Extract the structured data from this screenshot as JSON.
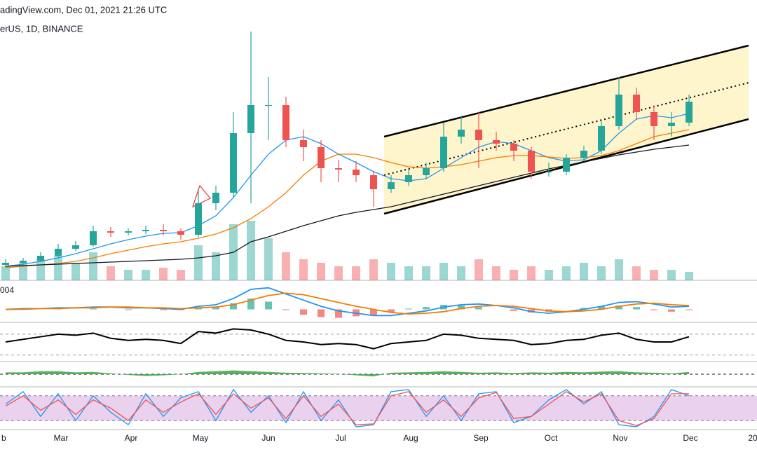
{
  "chart_data": {
    "type": "candlestick",
    "title": "adingView.com, Dec 01, 2021 21:26 UTC",
    "subtitle": "erUS, 1D, BINANCE",
    "x_labels": [
      "b",
      "Mar",
      "Apr",
      "May",
      "Jun",
      "Jul",
      "Aug",
      "Sep",
      "Oct",
      "Nov",
      "Dec",
      "20"
    ],
    "ylim": [
      0,
      375
    ],
    "up_color": "#26a69a",
    "down_color": "#ef5350",
    "candles": [
      [
        22,
        30,
        18,
        25
      ],
      [
        25,
        32,
        22,
        28
      ],
      [
        28,
        40,
        26,
        35
      ],
      [
        35,
        52,
        32,
        45
      ],
      [
        45,
        56,
        42,
        50
      ],
      [
        50,
        78,
        48,
        70
      ],
      [
        70,
        76,
        62,
        68
      ],
      [
        68,
        74,
        64,
        70
      ],
      [
        70,
        78,
        66,
        72
      ],
      [
        72,
        80,
        64,
        70
      ],
      [
        70,
        74,
        58,
        65
      ],
      [
        65,
        130,
        62,
        110
      ],
      [
        110,
        135,
        100,
        125
      ],
      [
        125,
        240,
        118,
        210
      ],
      [
        210,
        355,
        110,
        250
      ],
      [
        250,
        290,
        200,
        250
      ],
      [
        250,
        262,
        190,
        200
      ],
      [
        200,
        215,
        170,
        190
      ],
      [
        190,
        200,
        140,
        160
      ],
      [
        160,
        172,
        140,
        158
      ],
      [
        158,
        170,
        140,
        150
      ],
      [
        150,
        156,
        105,
        130
      ],
      [
        130,
        150,
        125,
        140
      ],
      [
        140,
        158,
        135,
        150
      ],
      [
        150,
        168,
        144,
        160
      ],
      [
        160,
        225,
        155,
        205
      ],
      [
        205,
        235,
        195,
        215
      ],
      [
        215,
        240,
        160,
        200
      ],
      [
        200,
        212,
        185,
        195
      ],
      [
        195,
        200,
        170,
        185
      ],
      [
        185,
        190,
        145,
        155
      ],
      [
        155,
        168,
        148,
        155
      ],
      [
        155,
        180,
        150,
        175
      ],
      [
        175,
        192,
        170,
        185
      ],
      [
        185,
        228,
        180,
        220
      ],
      [
        220,
        290,
        215,
        265
      ],
      [
        265,
        275,
        230,
        240
      ],
      [
        240,
        250,
        200,
        220
      ],
      [
        220,
        240,
        205,
        225
      ],
      [
        225,
        265,
        220,
        255
      ]
    ],
    "moving_averages": [
      {
        "color": "#2196f3",
        "values": [
          20,
          23,
          27,
          32,
          38,
          45,
          52,
          58,
          63,
          67,
          68,
          78,
          92,
          118,
          150,
          180,
          200,
          205,
          195,
          180,
          168,
          155,
          145,
          142,
          145,
          160,
          175,
          190,
          198,
          195,
          185,
          175,
          170,
          172,
          185,
          210,
          230,
          235,
          232,
          238
        ]
      },
      {
        "color": "#f57c00",
        "values": [
          18,
          20,
          22,
          24,
          27,
          32,
          38,
          43,
          48,
          52,
          55,
          60,
          66,
          75,
          88,
          105,
          125,
          150,
          170,
          180,
          180,
          175,
          168,
          162,
          160,
          162,
          165,
          170,
          175,
          178,
          178,
          176,
          174,
          175,
          178,
          185,
          195,
          205,
          210,
          215
        ]
      },
      {
        "color": "#131722",
        "values": [
          20,
          21,
          22,
          23,
          24,
          25,
          26,
          27,
          28,
          29,
          30,
          32,
          35,
          40,
          55,
          62,
          70,
          78,
          85,
          92,
          97,
          101,
          105,
          111,
          117,
          123,
          129,
          135,
          141,
          147,
          153,
          159,
          164,
          169,
          174,
          179,
          183,
          187,
          190,
          193
        ]
      }
    ],
    "volume": {
      "ylim": [
        0,
        100
      ],
      "values": [
        20,
        25,
        30,
        35,
        25,
        40,
        20,
        15,
        15,
        18,
        15,
        50,
        40,
        80,
        85,
        60,
        40,
        30,
        25,
        20,
        20,
        30,
        25,
        20,
        20,
        25,
        20,
        30,
        20,
        15,
        20,
        15,
        20,
        25,
        20,
        30,
        20,
        15,
        15,
        12
      ]
    },
    "macd": {
      "label": "004",
      "label_color": "#f57c00",
      "ylim": [
        -15,
        35
      ],
      "macd_color": "#2196f3",
      "signal_color": "#f57c00",
      "macd": [
        0,
        1,
        1,
        2,
        2,
        3,
        3,
        2,
        2,
        1,
        0,
        4,
        6,
        14,
        26,
        28,
        20,
        12,
        4,
        -2,
        -5,
        -8,
        -8,
        -5,
        -2,
        3,
        6,
        7,
        5,
        2,
        -3,
        -5,
        -3,
        0,
        4,
        9,
        10,
        7,
        3,
        4
      ],
      "signal": [
        0,
        0,
        1,
        1,
        2,
        2,
        3,
        3,
        2,
        2,
        1,
        2,
        3,
        6,
        12,
        18,
        21,
        19,
        14,
        9,
        4,
        0,
        -4,
        -6,
        -5,
        -3,
        1,
        4,
        5,
        4,
        1,
        -2,
        -3,
        -2,
        0,
        4,
        7,
        8,
        6,
        5
      ],
      "histogram": [
        0,
        1,
        0,
        1,
        0,
        1,
        0,
        -1,
        0,
        -1,
        -1,
        2,
        3,
        8,
        14,
        10,
        -1,
        -7,
        -10,
        -11,
        -9,
        -8,
        -4,
        1,
        3,
        6,
        5,
        3,
        0,
        -2,
        -4,
        -3,
        0,
        2,
        4,
        5,
        3,
        -1,
        -3,
        -1
      ]
    },
    "rsi": {
      "ylim": [
        20,
        90
      ],
      "levels": [
        70,
        30
      ],
      "color": "#000000",
      "values": [
        55,
        60,
        65,
        70,
        68,
        72,
        62,
        58,
        60,
        58,
        52,
        75,
        72,
        80,
        78,
        70,
        58,
        55,
        50,
        52,
        50,
        42,
        52,
        55,
        58,
        70,
        68,
        62,
        60,
        58,
        50,
        52,
        58,
        60,
        68,
        72,
        60,
        55,
        55,
        65
      ]
    },
    "cmf": {
      "ylim": [
        -0.3,
        0.3
      ],
      "color": "#43a047",
      "values": [
        0.05,
        0.05,
        0.08,
        0.08,
        0.05,
        0.06,
        0.02,
        -0.02,
        -0.05,
        -0.03,
        0,
        0.06,
        0.08,
        0.1,
        0.08,
        0.06,
        0.04,
        0.03,
        0.02,
        0.01,
        -0.03,
        -0.06,
        0.04,
        0.05,
        0.06,
        0.08,
        0.06,
        0.04,
        0.05,
        0.03,
        0.05,
        0.04,
        0.06,
        0.05,
        0.07,
        0.08,
        0.05,
        0.04,
        0.02,
        0.06
      ]
    },
    "stoch_rsi": {
      "ylim": [
        0,
        100
      ],
      "bands": [
        80,
        20
      ],
      "band_color": "#e1bee7",
      "k_color": "#2196f3",
      "d_color": "#ef5350",
      "k": [
        60,
        90,
        30,
        85,
        20,
        80,
        40,
        10,
        85,
        30,
        75,
        90,
        20,
        95,
        40,
        80,
        15,
        90,
        20,
        70,
        5,
        10,
        90,
        95,
        30,
        80,
        20,
        85,
        90,
        15,
        30,
        70,
        95,
        60,
        90,
        10,
        5,
        30,
        95,
        80
      ],
      "d": [
        55,
        80,
        45,
        70,
        35,
        70,
        50,
        20,
        70,
        40,
        65,
        85,
        35,
        85,
        50,
        75,
        25,
        80,
        30,
        60,
        10,
        12,
        80,
        90,
        40,
        70,
        30,
        75,
        88,
        25,
        30,
        60,
        90,
        65,
        85,
        20,
        8,
        25,
        85,
        85
      ]
    }
  }
}
